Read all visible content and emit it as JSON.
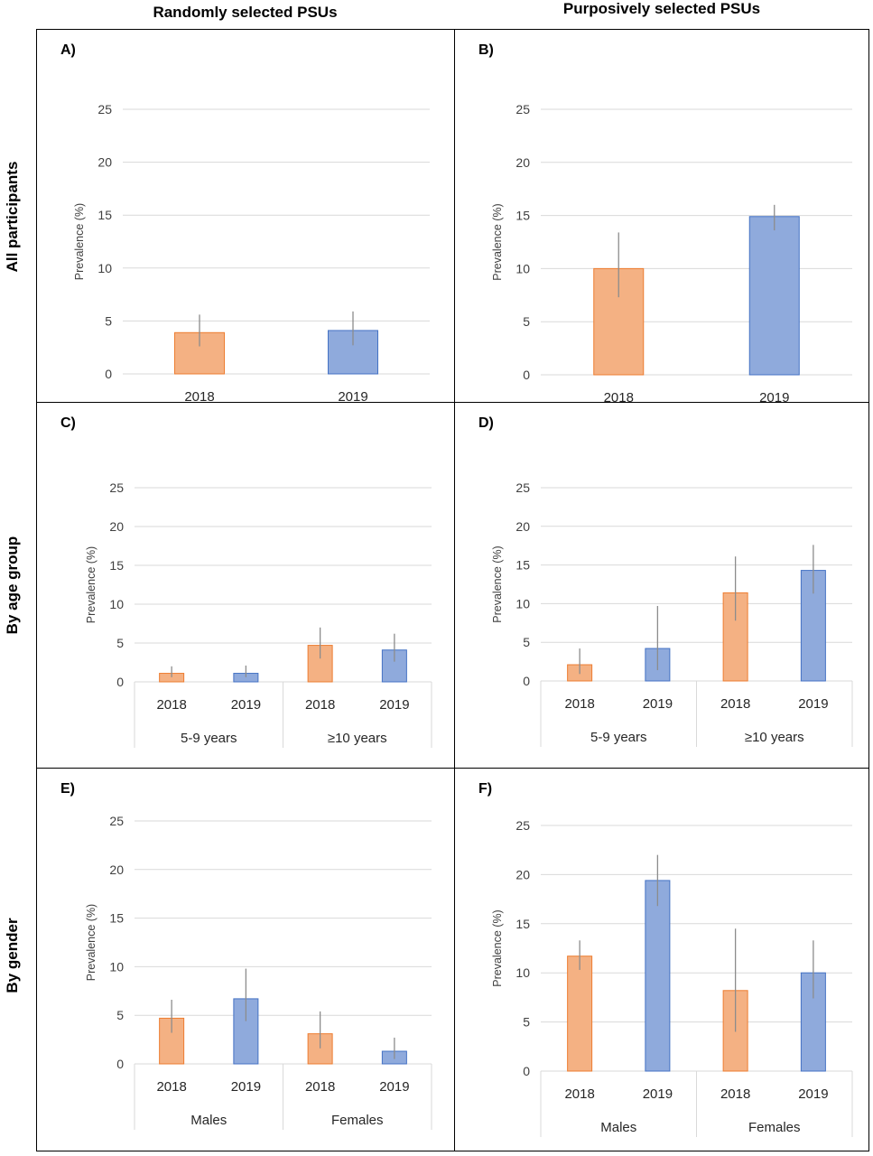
{
  "column_headers": [
    "Randomly selected PSUs",
    "Purposively selected PSUs"
  ],
  "row_headers": [
    "All participants",
    "By age group",
    "By gender"
  ],
  "colors": {
    "2018": "#f4b183",
    "2018_edge": "#ed7d31",
    "2019": "#8faadc",
    "2019_edge": "#4472c4",
    "error": "#8c8c8c",
    "grid": "#d9d9d9"
  },
  "chart_data": [
    {
      "panel": "A)",
      "type": "bar",
      "ylabel": "Prevalence (%)",
      "ylim": [
        0,
        25
      ],
      "yticks": [
        0,
        5,
        10,
        15,
        20,
        25
      ],
      "categories": [
        "2018",
        "2019"
      ],
      "groups": [],
      "values": [
        3.9,
        4.1
      ],
      "err_low": [
        2.6,
        2.7
      ],
      "err_high": [
        5.6,
        5.9
      ]
    },
    {
      "panel": "B)",
      "type": "bar",
      "ylabel": "Prevalence (%)",
      "ylim": [
        0,
        25
      ],
      "yticks": [
        0,
        5,
        10,
        15,
        20,
        25
      ],
      "categories": [
        "2018",
        "2019"
      ],
      "groups": [],
      "values": [
        10.0,
        14.9
      ],
      "err_low": [
        7.3,
        13.6
      ],
      "err_high": [
        13.4,
        16.0
      ]
    },
    {
      "panel": "C)",
      "type": "bar",
      "ylabel": "Prevalence (%)",
      "ylim": [
        0,
        25
      ],
      "yticks": [
        0,
        5,
        10,
        15,
        20,
        25
      ],
      "categories": [
        "2018",
        "2019",
        "2018",
        "2019"
      ],
      "groups": [
        "5-9 years",
        "≥10 years"
      ],
      "values": [
        1.1,
        1.1,
        4.7,
        4.1
      ],
      "err_low": [
        0.6,
        0.6,
        3.0,
        2.6
      ],
      "err_high": [
        2.0,
        2.1,
        7.0,
        6.2
      ]
    },
    {
      "panel": "D)",
      "type": "bar",
      "ylabel": "Prevalence (%)",
      "ylim": [
        0,
        25
      ],
      "yticks": [
        0,
        5,
        10,
        15,
        20,
        25
      ],
      "categories": [
        "2018",
        "2019",
        "2018",
        "2019"
      ],
      "groups": [
        "5-9 years",
        "≥10 years"
      ],
      "values": [
        2.1,
        4.2,
        11.4,
        14.3
      ],
      "err_low": [
        0.9,
        1.4,
        7.8,
        11.3
      ],
      "err_high": [
        4.2,
        9.7,
        16.1,
        17.6
      ]
    },
    {
      "panel": "E)",
      "type": "bar",
      "ylabel": "Prevalence (%)",
      "ylim": [
        0,
        25
      ],
      "yticks": [
        0,
        5,
        10,
        15,
        20,
        25
      ],
      "categories": [
        "2018",
        "2019",
        "2018",
        "2019"
      ],
      "groups": [
        "Males",
        "Females"
      ],
      "values": [
        4.7,
        6.7,
        3.1,
        1.3
      ],
      "err_low": [
        3.2,
        4.4,
        1.6,
        0.5
      ],
      "err_high": [
        6.6,
        9.8,
        5.4,
        2.7
      ]
    },
    {
      "panel": "F)",
      "type": "bar",
      "ylabel": "Prevalence (%)",
      "ylim": [
        0,
        25
      ],
      "yticks": [
        0,
        5,
        10,
        15,
        20,
        25
      ],
      "categories": [
        "2018",
        "2019",
        "2018",
        "2019"
      ],
      "groups": [
        "Males",
        "Females"
      ],
      "values": [
        11.7,
        19.4,
        8.2,
        10.0
      ],
      "err_low": [
        10.3,
        16.8,
        4.0,
        7.4
      ],
      "err_high": [
        13.3,
        22.0,
        14.5,
        13.3
      ]
    }
  ]
}
